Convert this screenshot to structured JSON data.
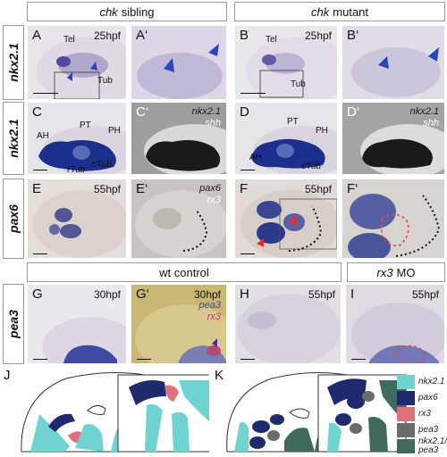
{
  "headers": {
    "sibling": {
      "gene": "chk",
      "rest": "sibling"
    },
    "mutant": {
      "gene": "chk",
      "rest": "mutant"
    },
    "wt": "wt control",
    "rx3mo": {
      "gene": "rx3",
      "rest": "MO"
    }
  },
  "rows": [
    "nkx2.1",
    "nkx2.1",
    "pax6",
    "pea3"
  ],
  "panels": {
    "A": {
      "letter": "A",
      "stage": "25hpf",
      "labels": [
        "Tel",
        "Tub"
      ]
    },
    "A2": {
      "letter": "A‘"
    },
    "B": {
      "letter": "B",
      "stage": "25hpf",
      "labels": [
        "Tel",
        "Tub"
      ]
    },
    "B2": {
      "letter": "B‘"
    },
    "C": {
      "letter": "C",
      "labels": [
        "AH",
        "PT",
        "PH",
        "cTub",
        "rTub"
      ]
    },
    "C2": {
      "letter": "C‘",
      "genes": [
        "nkx2.1",
        "shh"
      ]
    },
    "D": {
      "letter": "D",
      "labels": [
        "AH",
        "PT",
        "PH",
        "cTub"
      ]
    },
    "D2": {
      "letter": "D‘",
      "genes": [
        "nkx2.1",
        "shh"
      ]
    },
    "E": {
      "letter": "E",
      "stage": "55hpf"
    },
    "E2": {
      "letter": "E‘",
      "genes": [
        "pax6",
        "rx3"
      ]
    },
    "F": {
      "letter": "F",
      "stage": "55hpf"
    },
    "F2": {
      "letter": "F‘"
    },
    "G": {
      "letter": "G",
      "stage": "30hpf"
    },
    "G2": {
      "letter": "G‘",
      "stage": "30hpf",
      "genes": [
        "pea3",
        "rx3"
      ]
    },
    "H": {
      "letter": "H",
      "stage": "55hpf"
    },
    "I": {
      "letter": "I",
      "stage": "55hpf"
    }
  },
  "diagrams": {
    "J": "J",
    "K": "K"
  },
  "legend": [
    {
      "label": "nkx2.1",
      "color": "#6fd3cf"
    },
    {
      "label": "pax6",
      "color": "#1f2a6e"
    },
    {
      "label": "rx3",
      "color": "#e0707a"
    },
    {
      "label": "pea3",
      "color": "#6b6b6b"
    },
    {
      "label": "nkx2.1/\npea3",
      "color": "#3f6b5a"
    }
  ]
}
